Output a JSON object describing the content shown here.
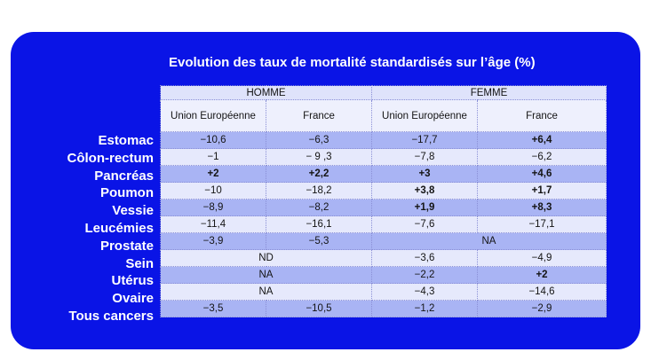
{
  "chart_data": {
    "type": "table",
    "title": "Evolution des taux de mortalité standardisés sur l’âge (%)",
    "groups": [
      "HOMME",
      "FEMME"
    ],
    "columns": [
      "Union Européenne",
      "France",
      "Union Européenne",
      "France"
    ],
    "rows": [
      {
        "label": "Estomac",
        "cells": [
          "−10,6",
          "−6,3",
          "−17,7",
          "+6,4"
        ]
      },
      {
        "label": "Côlon-rectum",
        "cells": [
          "−1",
          "− 9 ,3",
          "−7,8",
          "−6,2"
        ]
      },
      {
        "label": "Pancréas",
        "cells": [
          "+2",
          "+2,2",
          "+3",
          "+4,6"
        ]
      },
      {
        "label": "Poumon",
        "cells": [
          "−10",
          "−18,2",
          "+3,8",
          "+1,7"
        ]
      },
      {
        "label": "Vessie",
        "cells": [
          "−8,9",
          "−8,2",
          "+1,9",
          "+8,3"
        ]
      },
      {
        "label": "Leucémies",
        "cells": [
          "−11,4",
          "−16,1",
          "−7,6",
          "−17,1"
        ]
      },
      {
        "label": "Prostate",
        "cells": [
          "−3,9",
          "−5,3"
        ],
        "femme": "NA"
      },
      {
        "label": "Sein",
        "homme": "ND",
        "cells": [
          "−3,6",
          "−4,9"
        ]
      },
      {
        "label": "Utérus",
        "homme": "NA",
        "cells": [
          "−2,2",
          "+2"
        ]
      },
      {
        "label": "Ovaire",
        "homme": "NA",
        "cells": [
          "−4,3",
          "−14,6"
        ]
      },
      {
        "label": "Tous cancers",
        "cells": [
          "−3,5",
          "−10,5",
          "−1,2",
          "−2,9"
        ]
      }
    ],
    "colors": {
      "background": "#0a14e6",
      "row_dark": "#a9b4f4",
      "row_light": "#e6e9fc",
      "positive_text": "#0b16cf"
    }
  }
}
